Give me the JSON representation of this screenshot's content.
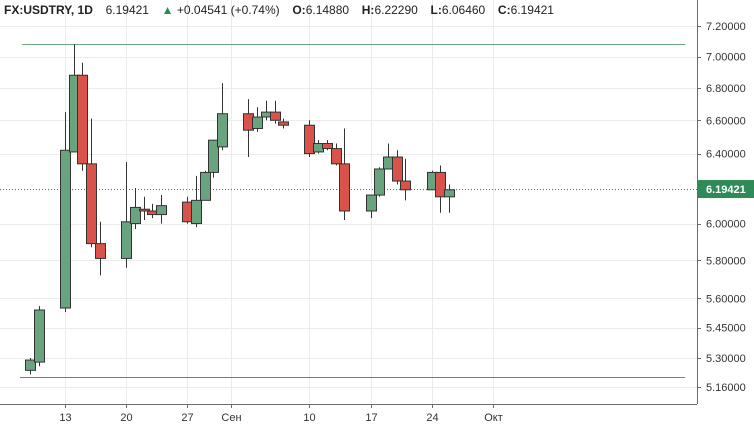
{
  "header": {
    "symbol": "FX:USDTRY, 1D",
    "last": "6.19421",
    "change_arrow": "▲",
    "change": "+0.04541 (+0.74%)",
    "o_label": "O:",
    "o_value": "6.14880",
    "h_label": "H:",
    "h_value": "6.22290",
    "l_label": "L:",
    "l_value": "6.06460",
    "c_label": "C:",
    "c_value": "6.19421"
  },
  "colors": {
    "up": "#6aa47f",
    "down": "#d9534a",
    "upper_line": "#6aa47f",
    "lower_line": "#d9534a",
    "last_price": "#2e8b57"
  },
  "chart_data": {
    "type": "candlestick",
    "title": "FX:USDTRY, 1D",
    "y_ticks": [
      "7.20000",
      "7.00000",
      "6.80000",
      "6.60000",
      "6.40000",
      "6.19421",
      "6.00000",
      "5.80000",
      "5.60000",
      "5.45000",
      "5.30000",
      "5.16000"
    ],
    "x_ticks": [
      "13",
      "20",
      "27",
      "Сен",
      "10",
      "17",
      "24",
      "Окт"
    ],
    "last_price_label": "6.19421",
    "upper_line": 7.08,
    "lower_line": 5.21,
    "grid": true,
    "candles": [
      {
        "o": 5.24,
        "h": 5.3,
        "l": 5.22,
        "c": 5.29
      },
      {
        "o": 5.28,
        "h": 5.56,
        "l": 5.26,
        "c": 5.54
      },
      {
        "o": 5.55,
        "h": 6.65,
        "l": 5.53,
        "c": 6.42
      },
      {
        "o": 6.41,
        "h": 7.08,
        "l": 6.41,
        "c": 6.88
      },
      {
        "o": 6.88,
        "h": 6.96,
        "l": 6.3,
        "c": 6.34
      },
      {
        "o": 6.34,
        "h": 6.61,
        "l": 5.87,
        "c": 5.89
      },
      {
        "o": 5.89,
        "h": 6.01,
        "l": 5.72,
        "c": 5.81
      },
      {
        "o": 5.81,
        "h": 6.35,
        "l": 5.76,
        "c": 6.01
      },
      {
        "o": 6.0,
        "h": 6.2,
        "l": 5.97,
        "c": 6.09
      },
      {
        "o": 6.08,
        "h": 6.15,
        "l": 6.02,
        "c": 6.07
      },
      {
        "o": 6.07,
        "h": 6.11,
        "l": 6.03,
        "c": 6.05
      },
      {
        "o": 6.05,
        "h": 6.16,
        "l": 6.0,
        "c": 6.1
      },
      {
        "o": 6.12,
        "h": 6.15,
        "l": 6.0,
        "c": 6.01
      },
      {
        "o": 6.0,
        "h": 6.27,
        "l": 5.98,
        "c": 6.13
      },
      {
        "o": 6.13,
        "h": 6.3,
        "l": 6.13,
        "c": 6.29
      },
      {
        "o": 6.29,
        "h": 6.48,
        "l": 6.26,
        "c": 6.48
      },
      {
        "o": 6.44,
        "h": 6.83,
        "l": 6.42,
        "c": 6.64
      },
      {
        "o": 6.64,
        "h": 6.73,
        "l": 6.38,
        "c": 6.54
      },
      {
        "o": 6.55,
        "h": 6.68,
        "l": 6.53,
        "c": 6.62
      },
      {
        "o": 6.62,
        "h": 6.72,
        "l": 6.6,
        "c": 6.65
      },
      {
        "o": 6.65,
        "h": 6.72,
        "l": 6.58,
        "c": 6.6
      },
      {
        "o": 6.59,
        "h": 6.61,
        "l": 6.55,
        "c": 6.57
      },
      {
        "o": 6.57,
        "h": 6.6,
        "l": 6.38,
        "c": 6.4
      },
      {
        "o": 6.41,
        "h": 6.48,
        "l": 6.4,
        "c": 6.46
      },
      {
        "o": 6.46,
        "h": 6.48,
        "l": 6.42,
        "c": 6.43
      },
      {
        "o": 6.43,
        "h": 6.46,
        "l": 6.33,
        "c": 6.34
      },
      {
        "o": 6.34,
        "h": 6.55,
        "l": 6.02,
        "c": 6.07
      },
      {
        "o": 6.07,
        "h": 6.16,
        "l": 6.03,
        "c": 6.16
      },
      {
        "o": 6.16,
        "h": 6.32,
        "l": 6.15,
        "c": 6.31
      },
      {
        "o": 6.31,
        "h": 6.46,
        "l": 6.31,
        "c": 6.38
      },
      {
        "o": 6.38,
        "h": 6.42,
        "l": 6.22,
        "c": 6.24
      },
      {
        "o": 6.24,
        "h": 6.37,
        "l": 6.13,
        "c": 6.19
      },
      {
        "o": 6.19,
        "h": 6.3,
        "l": 6.19,
        "c": 6.29
      },
      {
        "o": 6.29,
        "h": 6.33,
        "l": 6.06,
        "c": 6.15
      },
      {
        "o": 6.15,
        "h": 6.22,
        "l": 6.06,
        "c": 6.19
      }
    ]
  }
}
